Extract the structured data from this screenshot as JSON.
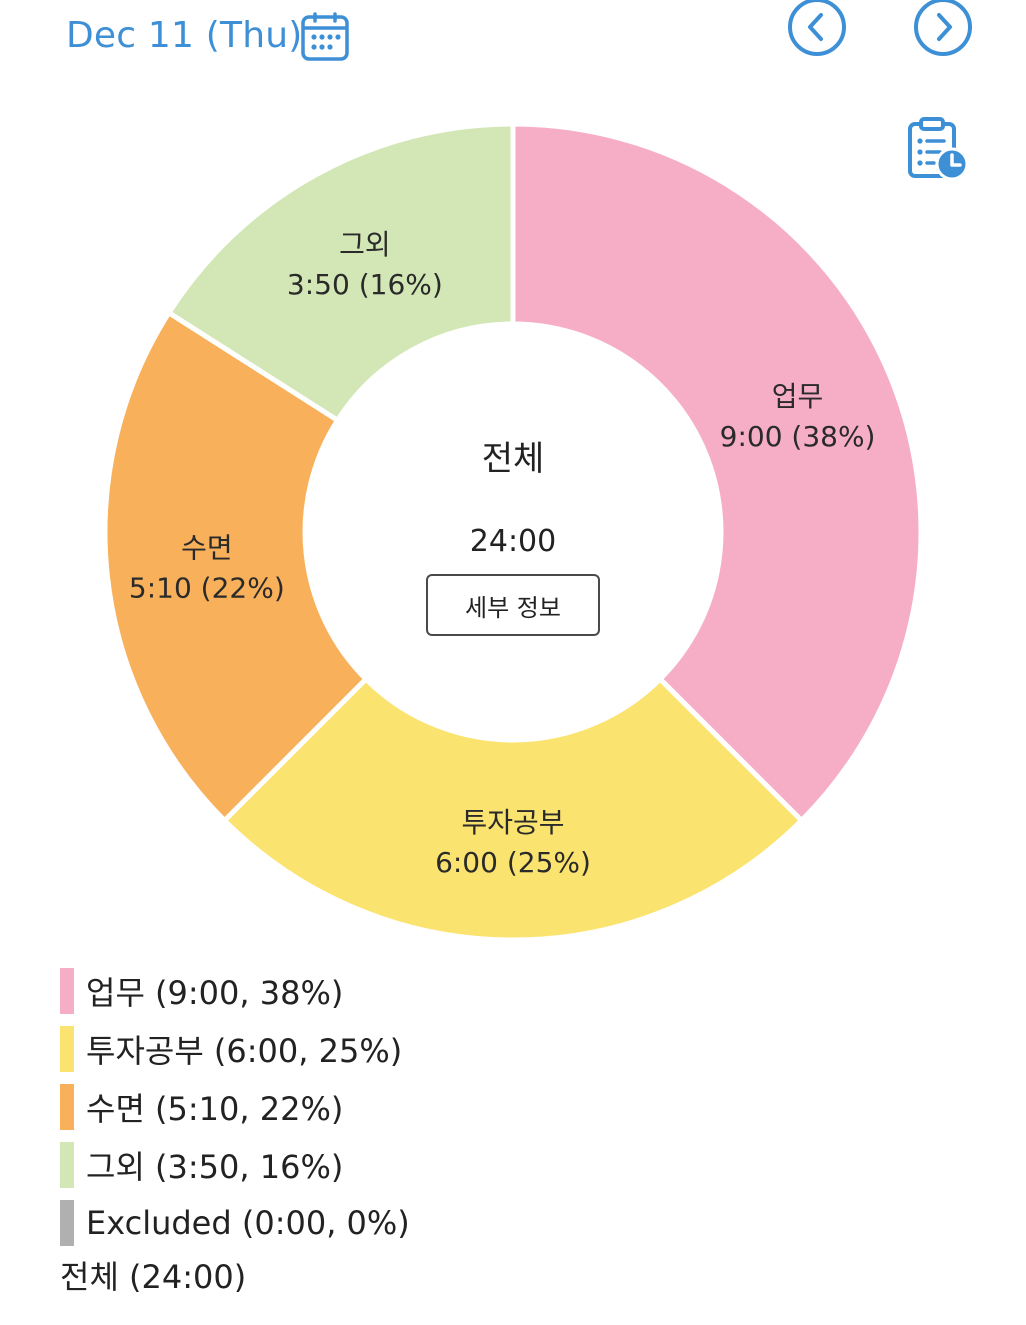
{
  "header": {
    "date": "Dec 11 (Thu)",
    "icons": {
      "calendar": "calendar-icon",
      "prev": "chevron-left-icon",
      "next": "chevron-right-icon",
      "history": "clipboard-clock-icon"
    }
  },
  "colors": {
    "accent": "#3d8fd6",
    "work": "#f6aec6",
    "study": "#fbe36f",
    "sleep": "#f8b05b",
    "other": "#d3e7b6",
    "excluded": "#b0b0b0"
  },
  "center": {
    "title": "전체",
    "total": "24:00",
    "detail_button": "세부 정보"
  },
  "chart_data": {
    "type": "pie",
    "donut": true,
    "start_angle_deg": 0,
    "direction": "clockwise",
    "total_minutes": 1440,
    "slices": [
      {
        "name": "업무",
        "time": "9:00",
        "minutes": 540,
        "percent": 38,
        "label_line1": "업무",
        "label_line2": "9:00 (38%)",
        "color": "#f6aec6"
      },
      {
        "name": "투자공부",
        "time": "6:00",
        "minutes": 360,
        "percent": 25,
        "label_line1": "투자공부",
        "label_line2": "6:00 (25%)",
        "color": "#fbe36f"
      },
      {
        "name": "수면",
        "time": "5:10",
        "minutes": 310,
        "percent": 22,
        "label_line1": "수면",
        "label_line2": "5:10 (22%)",
        "color": "#f8b05b"
      },
      {
        "name": "그외",
        "time": "3:50",
        "minutes": 230,
        "percent": 16,
        "label_line1": "그외",
        "label_line2": "3:50 (16%)",
        "color": "#d3e7b6"
      }
    ]
  },
  "legend": {
    "items": [
      {
        "text": "업무 (9:00, 38%)",
        "color": "#f6aec6"
      },
      {
        "text": "투자공부 (6:00, 25%)",
        "color": "#fbe36f"
      },
      {
        "text": "수면 (5:10, 22%)",
        "color": "#f8b05b"
      },
      {
        "text": "그외 (3:50, 16%)",
        "color": "#d3e7b6"
      },
      {
        "text": "Excluded (0:00, 0%)",
        "color": "#b0b0b0"
      }
    ],
    "total": "전체 (24:00)"
  }
}
